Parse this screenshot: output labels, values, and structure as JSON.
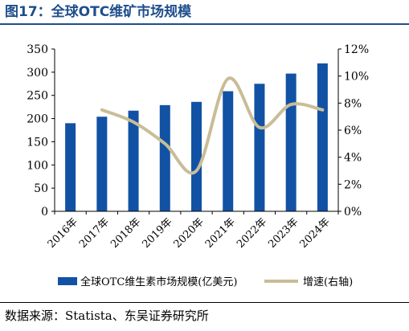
{
  "figure": {
    "title": "图17：全球OTC维矿市场规模",
    "source": "数据来源：Statista、东吴证券研究所"
  },
  "colors": {
    "bar": "#1252a4",
    "line": "#c9bd97",
    "title": "#1f4e8c"
  },
  "chart_data": {
    "type": "bar+line",
    "categories": [
      "2016年",
      "2017年",
      "2018年",
      "2019年",
      "2020年",
      "2021年",
      "2022年",
      "2023年",
      "2024年"
    ],
    "series": [
      {
        "name": "全球OTC维生素市场规模(亿美元)",
        "type": "bar",
        "axis": "left",
        "values": [
          190,
          204,
          217,
          229,
          236,
          259,
          275,
          297,
          319
        ]
      },
      {
        "name": "增速(右轴)",
        "type": "line",
        "axis": "right",
        "values": [
          null,
          7.5,
          6.6,
          5.0,
          3.0,
          9.8,
          6.2,
          7.9,
          7.5
        ]
      }
    ],
    "y_left": {
      "ylim": [
        0,
        350
      ],
      "ticks": [
        "0",
        "50",
        "100",
        "150",
        "200",
        "250",
        "300",
        "350"
      ]
    },
    "y_right": {
      "ylim": [
        0,
        12
      ],
      "ticks": [
        "0%",
        "2%",
        "4%",
        "6%",
        "8%",
        "10%",
        "12%"
      ]
    },
    "legend": "bottom",
    "grid": false
  }
}
